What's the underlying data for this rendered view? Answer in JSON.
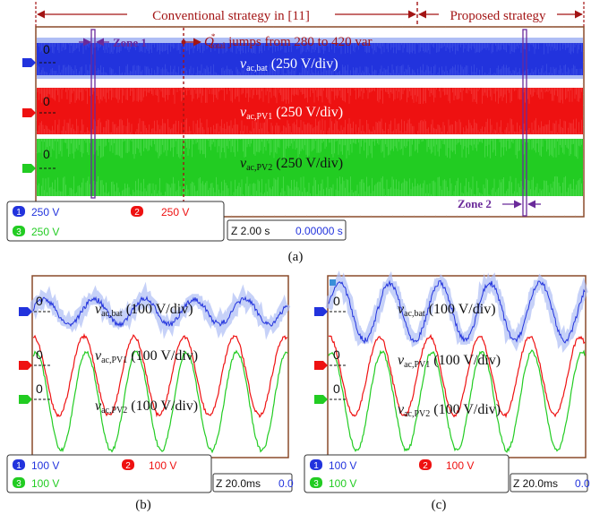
{
  "panel_a": {
    "header_left": "Conventional strategy in [11]",
    "header_right": "Proposed strategy",
    "zone1": "Zone 1",
    "zone2": "Zone 2",
    "q_symbol": "Q",
    "q_sup": "*",
    "q_sub": "total",
    "q_text": " jumps from 280 to 420 var",
    "zero": "0",
    "traces": [
      {
        "main": "v",
        "sub": "ac,bat",
        "scale": " (250 V/div)"
      },
      {
        "main": "v",
        "sub": "ac,PV1",
        "scale": " (250 V/div)"
      },
      {
        "main": "v",
        "sub": "ac,PV2",
        "scale": " (250 V/div)"
      }
    ],
    "channels": [
      {
        "num": "1",
        "value": "250 V"
      },
      {
        "num": "2",
        "value": "250 V"
      },
      {
        "num": "3",
        "value": "250 V"
      }
    ],
    "timebase": "Z 2.00 s",
    "offset": "0.00000 s",
    "caption": "(a)"
  },
  "panel_b": {
    "zero": "0",
    "traces": [
      {
        "main": "v",
        "sub": "ac,bat",
        "scale": " (100 V/div)"
      },
      {
        "main": "v",
        "sub": "ac,PV1",
        "scale": " (100 V/div)"
      },
      {
        "main": "v",
        "sub": "ac,PV2",
        "scale": " (100 V/div)"
      }
    ],
    "channels": [
      {
        "num": "1",
        "value": "100 V"
      },
      {
        "num": "2",
        "value": "100 V"
      },
      {
        "num": "3",
        "value": "100 V"
      }
    ],
    "timebase": "Z 20.0ms",
    "offset": "0.0",
    "caption": "(b)"
  },
  "panel_c": {
    "zero": "0",
    "traces": [
      {
        "main": "v",
        "sub": "ac,bat",
        "scale": " (100 V/div)"
      },
      {
        "main": "v",
        "sub": "ac,PV1",
        "scale": " (100 V/div)"
      },
      {
        "main": "v",
        "sub": "ac,PV2",
        "scale": " (100 V/div)"
      }
    ],
    "channels": [
      {
        "num": "1",
        "value": "100 V"
      },
      {
        "num": "2",
        "value": "100 V"
      },
      {
        "num": "3",
        "value": "100 V"
      }
    ],
    "timebase": "Z 20.0ms",
    "offset": "0.0",
    "caption": "(c)"
  },
  "colors": {
    "ch1": "#2233dd",
    "ch1_halo": "#aebdf5",
    "ch2": "#ee1111",
    "ch3": "#22cc22",
    "annotation": "#a31515",
    "zone": "#6a2a9a",
    "frame": "#8a4a2a"
  }
}
